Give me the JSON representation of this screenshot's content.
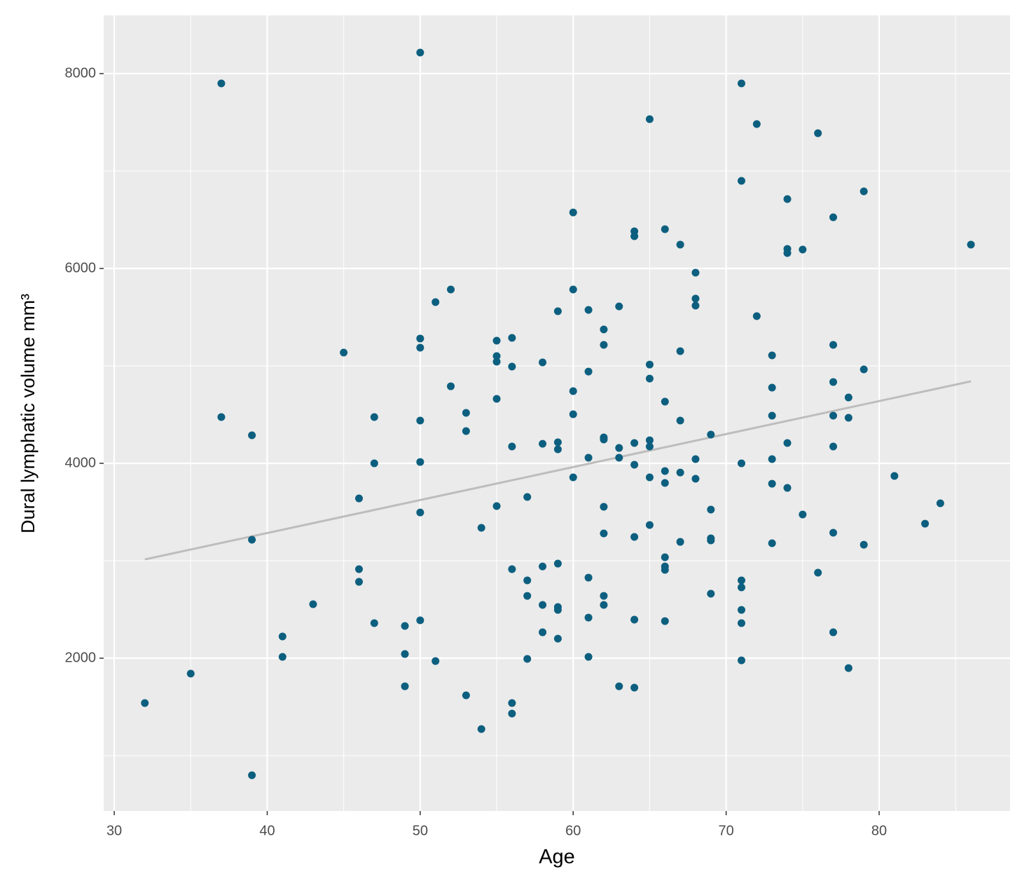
{
  "chart_data": {
    "type": "scatter",
    "xlabel": "Age",
    "ylabel": "Dural lymphatic volume mm³",
    "xlim": [
      29.31,
      88.56
    ],
    "ylim": [
      432,
      8597
    ],
    "xticks": [
      30,
      40,
      50,
      60,
      70,
      80
    ],
    "yticks": [
      2000,
      4000,
      6000,
      8000
    ],
    "grid": true,
    "color": "#0d5f7f",
    "x": [
      32,
      35,
      37,
      37,
      39,
      39,
      39,
      41,
      41,
      43,
      45,
      46,
      46,
      46,
      47,
      47,
      47,
      49,
      49,
      49,
      50,
      50,
      50,
      50,
      50,
      50,
      50,
      51,
      51,
      52,
      52,
      53,
      53,
      53,
      54,
      54,
      55,
      55,
      55,
      55,
      55,
      56,
      56,
      56,
      56,
      56,
      56,
      57,
      57,
      57,
      57,
      58,
      58,
      58,
      58,
      58,
      59,
      59,
      59,
      59,
      59,
      59,
      59,
      60,
      60,
      60,
      60,
      60,
      61,
      61,
      61,
      61,
      61,
      61,
      62,
      62,
      62,
      62,
      62,
      62,
      62,
      62,
      63,
      63,
      63,
      63,
      64,
      64,
      64,
      64,
      64,
      64,
      64,
      65,
      65,
      65,
      65,
      65,
      65,
      65,
      66,
      66,
      66,
      66,
      66,
      66,
      66,
      66,
      67,
      67,
      67,
      67,
      67,
      68,
      68,
      68,
      68,
      68,
      69,
      69,
      69,
      69,
      69,
      71,
      71,
      71,
      71,
      71,
      71,
      71,
      71,
      72,
      72,
      73,
      73,
      73,
      73,
      73,
      73,
      74,
      74,
      74,
      74,
      74,
      75,
      75,
      76,
      76,
      77,
      77,
      77,
      77,
      77,
      77,
      77,
      78,
      78,
      78,
      79,
      79,
      79,
      81,
      83,
      84,
      86
    ],
    "values": [
      1540,
      1842,
      7899,
      4475,
      4288,
      3216,
      799,
      2223,
      2014,
      2554,
      5137,
      3640,
      2914,
      2784,
      4475,
      4000,
      2360,
      2331,
      2043,
      1712,
      8216,
      5281,
      5187,
      4439,
      4014,
      3496,
      2389,
      5655,
      1971,
      5784,
      4791,
      4518,
      4331,
      1619,
      3338,
      1273,
      5259,
      5101,
      5043,
      4662,
      3561,
      5288,
      4993,
      4173,
      2914,
      1540,
      1432,
      3655,
      2799,
      2640,
      1993,
      5036,
      4201,
      2942,
      2547,
      2266,
      5561,
      4216,
      4144,
      2971,
      2525,
      2496,
      2201,
      6575,
      5784,
      4741,
      4504,
      3856,
      5575,
      4942,
      4058,
      2827,
      2417,
      2014,
      5374,
      5216,
      4266,
      4245,
      3554,
      3281,
      2640,
      2547,
      5611,
      4158,
      4058,
      1712,
      6381,
      6331,
      4209,
      3986,
      3245,
      2396,
      1698,
      7532,
      5014,
      4870,
      4237,
      4173,
      3856,
      3367,
      6403,
      4633,
      3921,
      3799,
      3036,
      2942,
      2907,
      2381,
      6245,
      5151,
      4439,
      3906,
      3194,
      5957,
      5691,
      5619,
      4043,
      3842,
      4295,
      3525,
      3230,
      3209,
      2662,
      7899,
      6899,
      4000,
      2799,
      2727,
      2496,
      2360,
      1978,
      7482,
      5511,
      5108,
      4777,
      4489,
      4043,
      3791,
      3180,
      6712,
      6201,
      6158,
      4209,
      3748,
      6194,
      3475,
      7388,
      2878,
      6525,
      5216,
      4835,
      4489,
      4173,
      3288,
      2266,
      4676,
      4468,
      1899,
      6791,
      4964,
      3165,
      3871,
      3381,
      3590,
      6245
    ],
    "trend_line": {
      "x": [
        32,
        86
      ],
      "values": [
        3014,
        4842
      ],
      "color": "#bdbdbd"
    }
  }
}
